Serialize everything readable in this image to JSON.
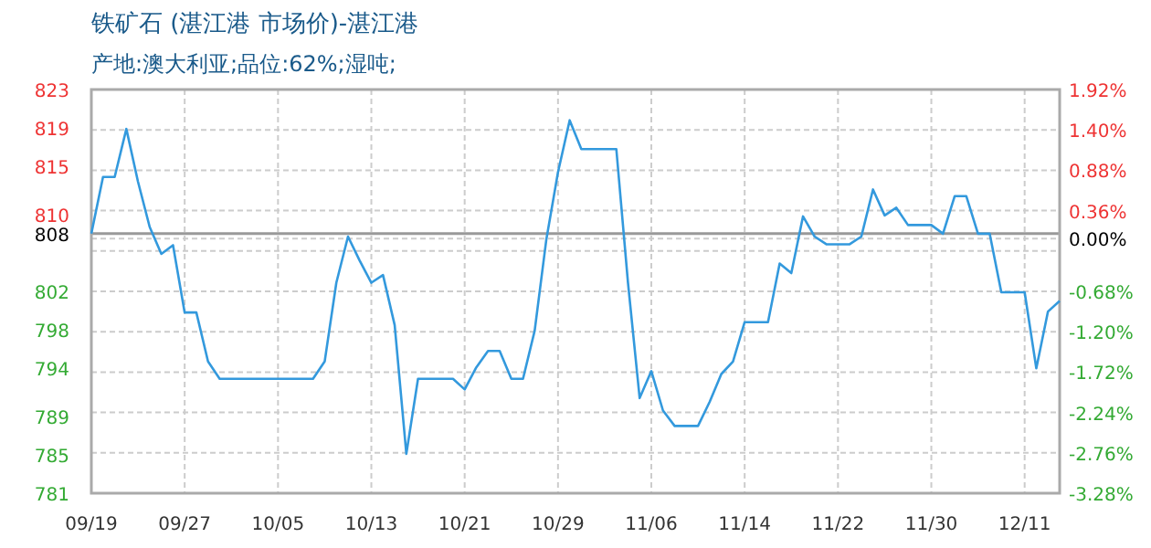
{
  "chart_data": {
    "type": "line",
    "title": "铁矿石 (湛江港 市场价)-湛江港",
    "subtitle": "产地:澳大利亚;品位:62%;湿吨;",
    "categories": [
      "09/19",
      null,
      null,
      null,
      null,
      null,
      null,
      null,
      "09/27",
      null,
      null,
      null,
      null,
      null,
      null,
      null,
      "10/05",
      null,
      null,
      null,
      null,
      null,
      null,
      null,
      "10/13",
      null,
      null,
      null,
      null,
      null,
      null,
      null,
      "10/21",
      null,
      null,
      null,
      null,
      null,
      null,
      null,
      "10/29",
      null,
      null,
      null,
      null,
      null,
      null,
      null,
      "11/06",
      null,
      null,
      null,
      null,
      null,
      null,
      null,
      "11/14",
      null,
      null,
      null,
      null,
      null,
      null,
      null,
      "11/22",
      null,
      null,
      null,
      null,
      null,
      null,
      null,
      "11/30",
      null,
      null,
      null,
      null,
      null,
      null,
      null,
      "12/11",
      null,
      null,
      null
    ],
    "values": [
      808,
      813.9,
      813.9,
      818.9,
      813.4,
      808.7,
      805.9,
      806.8,
      799.8,
      799.8,
      794.7,
      792.9,
      792.9,
      792.9,
      792.9,
      792.9,
      792.9,
      792.9,
      792.9,
      792.9,
      794.7,
      802.9,
      807.7,
      805.2,
      802.9,
      803.7,
      798.5,
      785.1,
      792.9,
      792.9,
      792.9,
      792.9,
      791.8,
      794.1,
      795.8,
      795.8,
      792.9,
      792.9,
      797.9,
      807.4,
      814.4,
      819.8,
      816.8,
      816.8,
      816.8,
      816.8,
      802.9,
      790.9,
      793.7,
      789.6,
      788,
      788,
      788,
      790.5,
      793.4,
      794.7,
      798.8,
      798.8,
      798.8,
      804.9,
      803.9,
      809.8,
      807.7,
      806.9,
      806.9,
      806.9,
      807.7,
      812.6,
      809.9,
      810.7,
      808.9,
      808.9,
      808.9,
      808,
      811.9,
      811.9,
      808,
      808,
      801.9,
      801.9,
      801.9,
      794,
      799.9,
      801
    ],
    "color": "#3399dd",
    "ylim": [
      781,
      823
    ],
    "yticks": [
      823,
      819,
      815,
      810,
      808,
      802,
      798,
      794,
      789,
      785,
      781
    ],
    "y2lim": [
      -3.28,
      1.92
    ],
    "y2ticks": [
      {
        "value": 1.92,
        "label": "1.92%"
      },
      {
        "value": 1.4,
        "label": "1.40%"
      },
      {
        "value": 0.88,
        "label": "0.88%"
      },
      {
        "value": 0.36,
        "label": "0.36%"
      },
      {
        "value": 0,
        "label": "0.00%"
      },
      {
        "value": -0.16,
        "label": null
      },
      {
        "value": -0.68,
        "label": "-0.68%"
      },
      {
        "value": -1.2,
        "label": "-1.20%"
      },
      {
        "value": -1.72,
        "label": "-1.72%"
      },
      {
        "value": -2.24,
        "label": "-2.24%"
      },
      {
        "value": -2.76,
        "label": "-2.76%"
      },
      {
        "value": -3.28,
        "label": "-3.28%"
      }
    ],
    "ref_lines": [
      {
        "axis": "y",
        "value": 808,
        "color": "#999999"
      }
    ],
    "grid": true
  }
}
